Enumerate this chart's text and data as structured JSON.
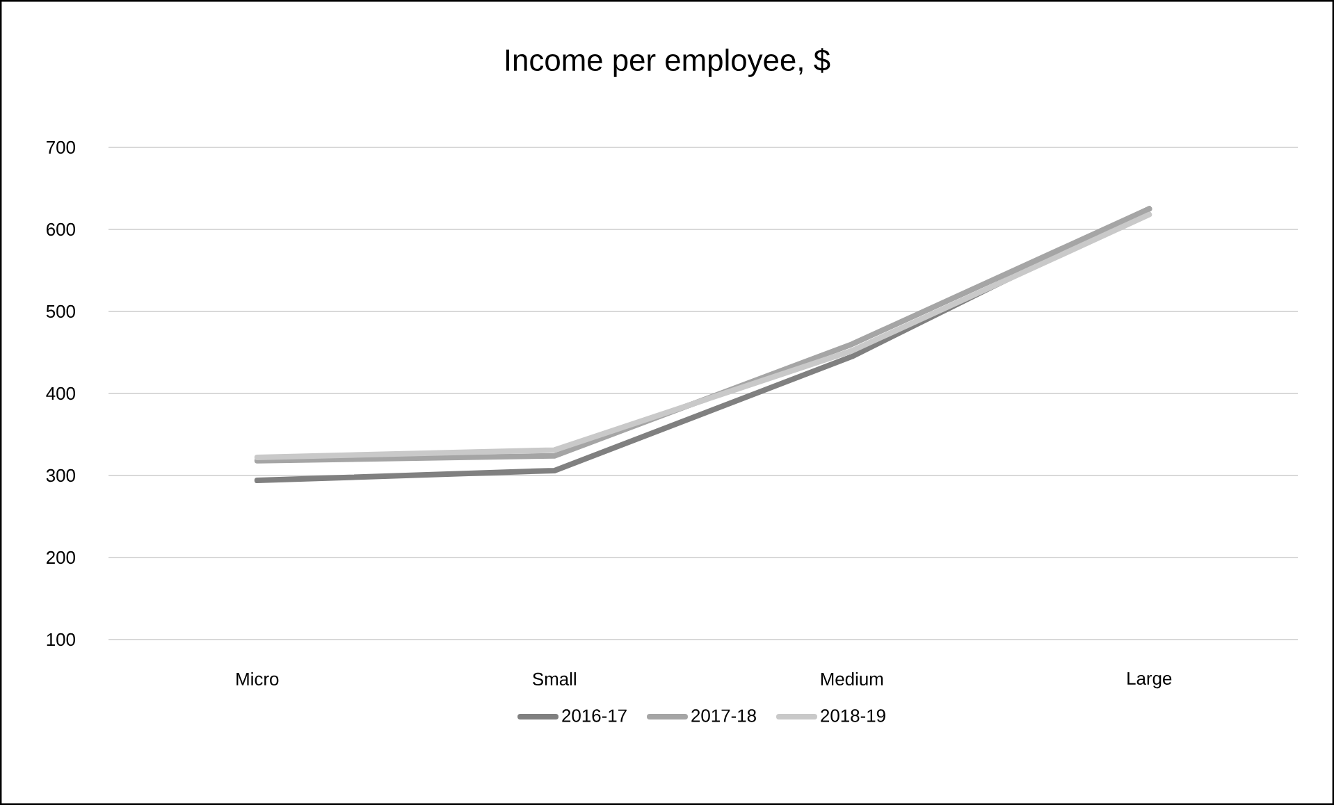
{
  "chart_data": {
    "type": "line",
    "title": "Income per employee, $",
    "categories": [
      "Micro",
      "Small",
      "Medium",
      "Large"
    ],
    "series": [
      {
        "name": "2016-17",
        "color": "#808080",
        "values": [
          294,
          306,
          445,
          625
        ]
      },
      {
        "name": "2017-18",
        "color": "#a5a5a5",
        "values": [
          318,
          324,
          460,
          625
        ]
      },
      {
        "name": "2018-19",
        "color": "#c9c9c9",
        "values": [
          322,
          331,
          452,
          618
        ]
      }
    ],
    "ylim": [
      100,
      700
    ],
    "yticks": [
      100,
      200,
      300,
      400,
      500,
      600,
      700
    ],
    "grid": "y",
    "legend": "bottom",
    "marker": "none",
    "line_style": "solid"
  }
}
